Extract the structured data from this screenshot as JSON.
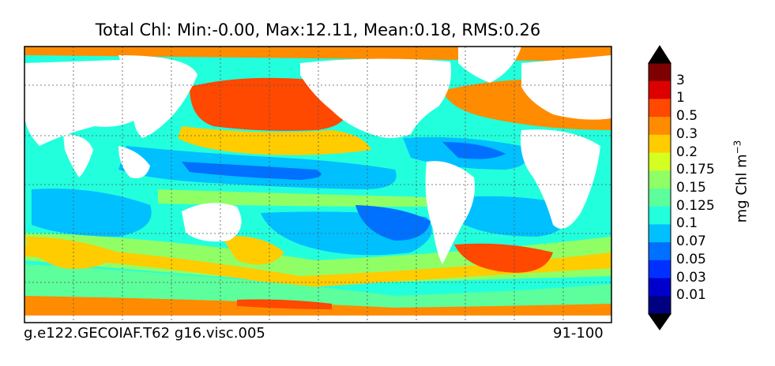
{
  "title": "Total Chl: Min:-0.00, Max:12.11, Mean:0.18, RMS:0.26",
  "footer": {
    "case_name": "g.e122.GECOIAF.T62 g16.visc.005",
    "years": "91-100"
  },
  "colorbar": {
    "units_main": "mg Chl m",
    "units_exp": "−3",
    "labels": [
      "3",
      "1",
      "0.5",
      "0.3",
      "0.2",
      "0.175",
      "0.15",
      "0.125",
      "0.1",
      "0.07",
      "0.05",
      "0.03",
      "0.01"
    ],
    "colors": [
      "#7f0000",
      "#dd0000",
      "#ff4800",
      "#ff8c00",
      "#ffcc00",
      "#d4ff22",
      "#90ff66",
      "#5cff9c",
      "#22ffdd",
      "#00c0ff",
      "#0070ff",
      "#0030ff",
      "#0000cc",
      "#000080"
    ],
    "over_color": "#000000",
    "under_color": "#000000"
  },
  "map": {
    "ocean_background": "#22ffdd",
    "land_color": "#ffffff",
    "grid": true
  }
}
